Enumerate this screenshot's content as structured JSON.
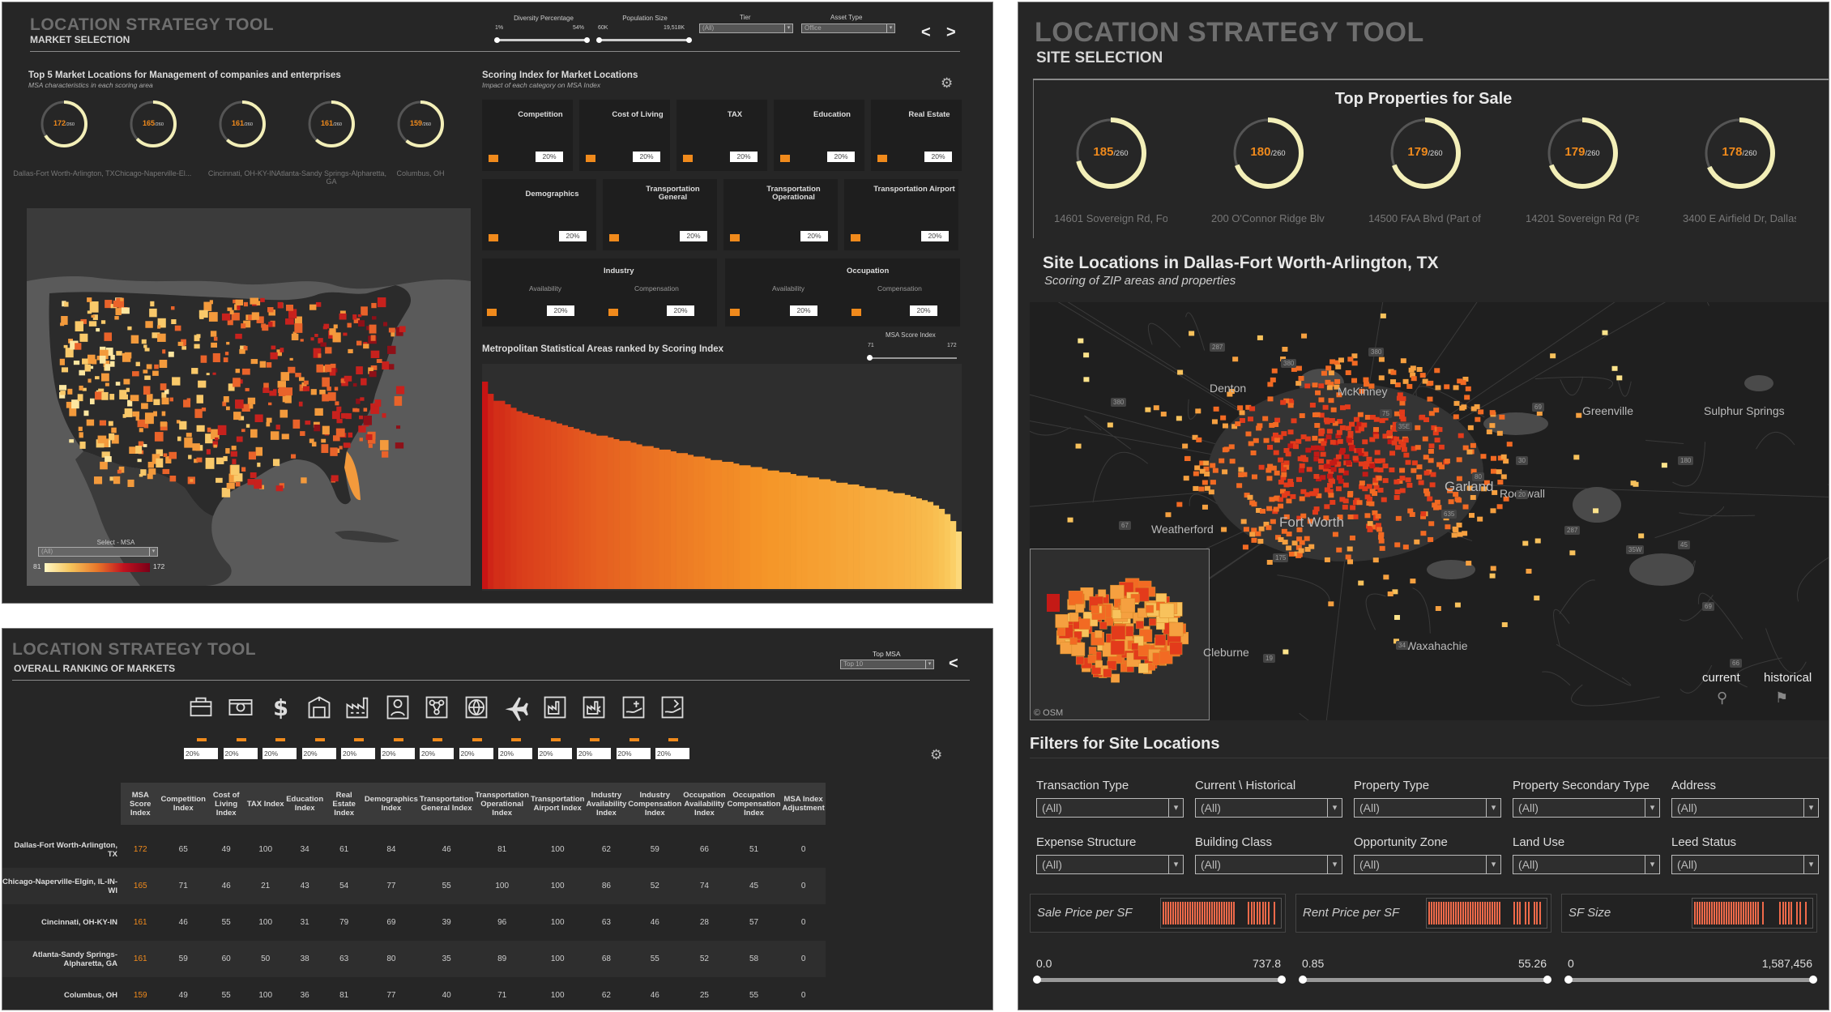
{
  "market": {
    "title": "LOCATION STRATEGY TOOL",
    "subtitle": "MARKET SELECTION",
    "filters": {
      "diversity_label": "Diversity Percentage",
      "diversity_min": "1%",
      "diversity_max": "54%",
      "population_label": "Population Size",
      "population_min": "60K",
      "population_max": "19,518K",
      "tier_label": "Tier",
      "tier_value": "(All)",
      "asset_label": "Asset Type",
      "asset_value": "Office"
    },
    "nav_prev": "<",
    "nav_next": ">",
    "top5_title": "Top 5 Market Locations for Management of companies and enterprises",
    "top5_subtitle": "MSA characteristics in each scoring area",
    "top5": [
      {
        "score": "172",
        "max": "/260",
        "name": "Dallas-Fort Worth-Arlington, TX",
        "fraction": 0.66
      },
      {
        "score": "165",
        "max": "/260",
        "name": "Chicago-Naperville-El...",
        "fraction": 0.63
      },
      {
        "score": "161",
        "max": "/260",
        "name": "Cincinnati, OH-KY-IN",
        "fraction": 0.62
      },
      {
        "score": "161",
        "max": "/260",
        "name": "Atlanta-Sandy Springs-Alpharetta, GA",
        "fraction": 0.62
      },
      {
        "score": "159",
        "max": "/260",
        "name": "Columbus, OH",
        "fraction": 0.61
      }
    ],
    "select_msa_label": "Select - MSA",
    "select_msa_value": "(All)",
    "legend_min": "81",
    "legend_max": "172",
    "scoring_title": "Scoring Index for Market Locations",
    "scoring_subtitle": "Impact of each category on MSA Index",
    "categories": [
      {
        "name": "Competition",
        "pct": "20%",
        "icon": "briefcase-icon"
      },
      {
        "name": "Cost of Living",
        "pct": "20%",
        "icon": "money-icon"
      },
      {
        "name": "TAX",
        "pct": "20%",
        "icon": "dollar-icon"
      },
      {
        "name": "Education",
        "pct": "20%",
        "icon": "school-icon"
      },
      {
        "name": "Real Estate",
        "pct": "20%",
        "icon": "factory-icon"
      },
      {
        "name": "Demographics",
        "pct": "20%",
        "icon": "person-icon"
      },
      {
        "name": "Transportation General",
        "pct": "20%",
        "icon": "network-icon"
      },
      {
        "name": "Transportation Operational",
        "pct": "20%",
        "icon": "globe-icon"
      },
      {
        "name": "Transportation Airport",
        "pct": "20%",
        "icon": "airplane-icon"
      }
    ],
    "industry": {
      "name": "Industry",
      "sub1": "Availability",
      "sub2": "Compensation",
      "pct1": "20%",
      "pct2": "20%"
    },
    "occupation": {
      "name": "Occupation",
      "sub1": "Availability",
      "sub2": "Compensation",
      "pct1": "20%",
      "pct2": "20%"
    },
    "ranked_title": "Metropolitan Statistical Areas ranked by Scoring Index",
    "msa_index_label": "MSA Score Index",
    "msa_index_min": "71",
    "msa_index_max": "172",
    "colors": {
      "accent": "#f08a1c",
      "dark": "#262626",
      "ring": "#f3efb8"
    }
  },
  "chart_data": {
    "type": "bar",
    "title": "Metropolitan Statistical Areas ranked by Scoring Index",
    "xlabel": "",
    "ylabel": "",
    "ylim": [
      71,
      172
    ],
    "values": [
      172,
      165,
      161,
      161,
      159,
      157,
      155,
      154,
      153,
      152,
      151,
      150,
      149,
      148,
      147,
      146,
      145,
      144,
      143,
      142,
      141,
      141,
      140,
      139,
      138,
      138,
      137,
      136,
      135,
      135,
      134,
      133,
      133,
      132,
      131,
      131,
      130,
      129,
      129,
      128,
      127,
      127,
      126,
      126,
      125,
      124,
      124,
      123,
      123,
      122,
      121,
      121,
      120,
      120,
      119,
      118,
      118,
      117,
      117,
      116,
      116,
      115,
      114,
      114,
      113,
      113,
      112,
      111,
      111,
      110,
      110,
      109,
      108,
      108,
      107,
      106,
      105,
      104,
      103,
      101,
      99,
      96,
      92,
      86
    ]
  },
  "site": {
    "title": "LOCATION STRATEGY TOOL",
    "subtitle": "SITE SELECTION",
    "top_title": "Top Properties for Sale",
    "props": [
      {
        "score": "185",
        "max": "/260",
        "name": "14601 Sovereign Rd, Fort W...",
        "fraction": 0.71
      },
      {
        "score": "180",
        "max": "/260",
        "name": "200 O'Connor Ridge Blvd, Ir...",
        "fraction": 0.69
      },
      {
        "score": "179",
        "max": "/260",
        "name": "14500 FAA Blvd (Part of Mult...",
        "fraction": 0.69
      },
      {
        "score": "179",
        "max": "/260",
        "name": "14201 Sovereign Rd (Part of ...",
        "fraction": 0.69
      },
      {
        "score": "178",
        "max": "/260",
        "name": "3400 E Airfield Dr, Dallas, TX",
        "fraction": 0.68
      }
    ],
    "map_title": "Site Locations in Dallas-Fort Worth-Arlington, TX",
    "map_subtitle": "Scoring of ZIP areas and properties",
    "cities": [
      "Denton",
      "McKinney",
      "Greenville",
      "Sulphur Springs",
      "Garland",
      "Rockwall",
      "Fort Worth",
      "Weatherford",
      "Waxahachie",
      "Cleburne"
    ],
    "roads": [
      "287",
      "380",
      "380",
      "380",
      "69",
      "75",
      "35E",
      "635",
      "80",
      "30",
      "20",
      "287",
      "35W",
      "45",
      "175",
      "34",
      "19",
      "69",
      "180",
      "67",
      "66"
    ],
    "osm": "© OSM",
    "legend_current": "current",
    "legend_historical": "historical",
    "filters_title": "Filters for Site Locations",
    "filters": [
      {
        "label": "Transaction Type",
        "value": "(All)"
      },
      {
        "label": "Current \\ Historical",
        "value": "(All)"
      },
      {
        "label": "Property Type",
        "value": "(All)"
      },
      {
        "label": "Property Secondary Type",
        "value": "(All)"
      },
      {
        "label": "Address",
        "value": "(All)"
      },
      {
        "label": "Expense Structure",
        "value": "(All)"
      },
      {
        "label": "Building Class",
        "value": "(All)"
      },
      {
        "label": "Opportunity Zone",
        "value": "(All)"
      },
      {
        "label": "Land Use",
        "value": "(All)"
      },
      {
        "label": "Leed Status",
        "value": "(All)"
      }
    ],
    "ranges": [
      {
        "label": "Sale Price per SF",
        "min": "0.0",
        "max": "737.8"
      },
      {
        "label": "Rent Price per SF",
        "min": "0.85",
        "max": "55.26"
      },
      {
        "label": "SF Size",
        "min": "0",
        "max": "1,587,456"
      }
    ]
  },
  "ranking": {
    "title": "LOCATION STRATEGY TOOL",
    "subtitle": "OVERALL RANKING OF MARKETS",
    "top_msa_label": "Top MSA",
    "top_msa_value": "Top 10",
    "nav_prev": "<",
    "weights": [
      "20%",
      "20%",
      "20%",
      "20%",
      "20%",
      "20%",
      "20%",
      "20%",
      "20%",
      "20%",
      "20%",
      "20%",
      "20%"
    ],
    "icons": [
      "briefcase-icon",
      "money-icon",
      "dollar-icon",
      "school-icon",
      "factory-icon",
      "person-icon",
      "network-icon",
      "globe-icon",
      "airplane-icon",
      "industry-avail-icon",
      "industry-comp-icon",
      "occupation-avail-icon",
      "occupation-comp-icon"
    ],
    "headers": [
      "MSA Score Index",
      "Competition Index",
      "Cost of Living Index",
      "TAX Index",
      "Education Index",
      "Real Estate Index",
      "Demographics Index",
      "Transportation General Index",
      "Transportation Operational Index",
      "Transportation Airport Index",
      "Industry Availability Index",
      "Industry Compensation Index",
      "Occupation Availability Index",
      "Occupation Compensation Index",
      "MSA Index Adjustment"
    ],
    "rows": [
      {
        "name": "Dallas-Fort Worth-Arlington, TX",
        "cells": [
          "172",
          "65",
          "49",
          "100",
          "34",
          "61",
          "84",
          "46",
          "81",
          "100",
          "62",
          "59",
          "66",
          "51",
          "0"
        ]
      },
      {
        "name": "Chicago-Naperville-Elgin, IL-IN-WI",
        "cells": [
          "165",
          "71",
          "46",
          "21",
          "43",
          "54",
          "77",
          "55",
          "100",
          "100",
          "86",
          "52",
          "74",
          "45",
          "0"
        ]
      },
      {
        "name": "Cincinnati, OH-KY-IN",
        "cells": [
          "161",
          "46",
          "55",
          "100",
          "31",
          "79",
          "69",
          "39",
          "96",
          "100",
          "63",
          "46",
          "28",
          "57",
          "0"
        ]
      },
      {
        "name": "Atlanta-Sandy Springs-Alpharetta, GA",
        "cells": [
          "161",
          "59",
          "60",
          "50",
          "38",
          "63",
          "80",
          "35",
          "89",
          "100",
          "68",
          "55",
          "52",
          "58",
          "0"
        ]
      },
      {
        "name": "Columbus, OH",
        "cells": [
          "159",
          "49",
          "55",
          "100",
          "36",
          "81",
          "77",
          "40",
          "71",
          "100",
          "62",
          "46",
          "25",
          "55",
          "0"
        ]
      }
    ]
  }
}
